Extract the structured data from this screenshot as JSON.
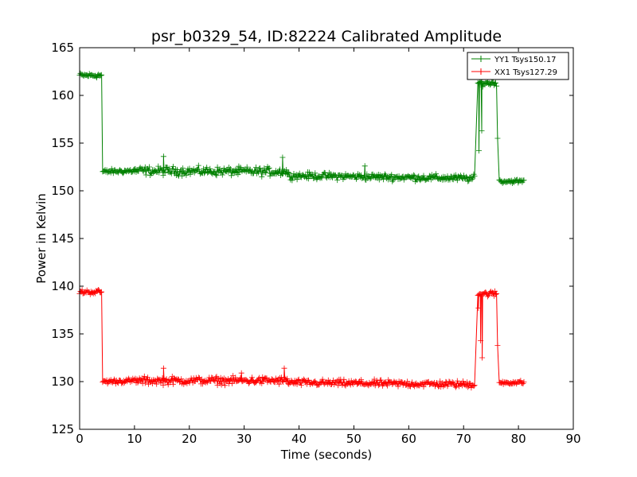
{
  "chart_data": {
    "type": "line",
    "title": "psr_b0329_54, ID:82224 Calibrated Amplitude",
    "xlabel": "Time (seconds)",
    "ylabel": "Power in Kelvin",
    "xlim": [
      0,
      90
    ],
    "ylim": [
      125,
      165
    ],
    "xticks": [
      0,
      10,
      20,
      30,
      40,
      50,
      60,
      70,
      80,
      90
    ],
    "yticks": [
      125,
      130,
      135,
      140,
      145,
      150,
      155,
      160,
      165
    ],
    "grid": false,
    "legend_position": "top-right",
    "marker": "+",
    "series": [
      {
        "name": "YY1 Tsys150.17",
        "color": "#008000",
        "segments": [
          {
            "x_range": [
              0,
              4.0
            ],
            "level": 162.1,
            "noise": 0.25
          },
          {
            "x_range": [
              4.2,
              10.0
            ],
            "level_range": [
              152.0,
              152.1
            ],
            "noise": 0.25
          },
          {
            "x_range": [
              10.0,
              38.0
            ],
            "level_range": [
              152.1,
              152.0
            ],
            "noise": 0.45
          },
          {
            "x_range": [
              38.0,
              72.0
            ],
            "level_range": [
              151.6,
              151.3
            ],
            "noise": 0.35
          },
          {
            "x_range": [
              72.6,
              76.0
            ],
            "level": 161.3,
            "noise": 0.3
          },
          {
            "x_range": [
              76.5,
              81.0
            ],
            "level": 151.0,
            "noise": 0.2
          }
        ],
        "outliers": [
          [
            15.3,
            153.6
          ],
          [
            37.0,
            153.5
          ],
          [
            52.0,
            152.6
          ],
          [
            72.8,
            154.2
          ],
          [
            73.3,
            156.3
          ],
          [
            76.2,
            155.5
          ]
        ]
      },
      {
        "name": "XX1 Tsys127.29",
        "color": "#ff0000",
        "segments": [
          {
            "x_range": [
              0,
              4.0
            ],
            "level": 139.4,
            "noise": 0.25
          },
          {
            "x_range": [
              4.2,
              10.0
            ],
            "level_range": [
              130.0,
              130.1
            ],
            "noise": 0.25
          },
          {
            "x_range": [
              10.0,
              38.0
            ],
            "level_range": [
              130.1,
              130.1
            ],
            "noise": 0.4
          },
          {
            "x_range": [
              38.0,
              72.0
            ],
            "level_range": [
              129.9,
              129.7
            ],
            "noise": 0.35
          },
          {
            "x_range": [
              72.6,
              76.0
            ],
            "level": 139.2,
            "noise": 0.3
          },
          {
            "x_range": [
              76.5,
              81.0
            ],
            "level": 129.9,
            "noise": 0.2
          }
        ],
        "outliers": [
          [
            15.3,
            131.4
          ],
          [
            29.5,
            130.9
          ],
          [
            37.3,
            131.4
          ],
          [
            72.7,
            137.7
          ],
          [
            73.1,
            134.3
          ],
          [
            73.4,
            132.5
          ],
          [
            76.2,
            133.8
          ]
        ]
      }
    ]
  }
}
